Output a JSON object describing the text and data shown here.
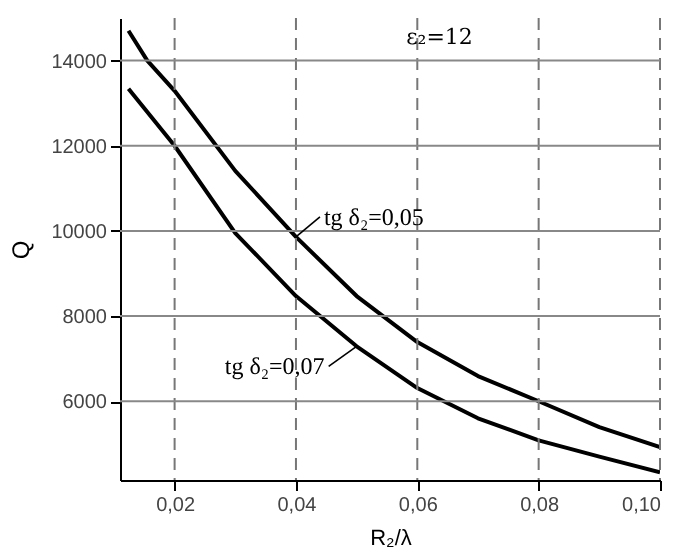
{
  "chart_data": {
    "type": "line",
    "xlabel": "R₂/λ",
    "ylabel": "Q",
    "annotations": [
      "ε₂=12"
    ],
    "series": [
      {
        "name": "tg δ₂=0,05",
        "color": "#000000",
        "x": [
          0.0124,
          0.0155,
          0.02,
          0.03,
          0.04,
          0.05,
          0.06,
          0.07,
          0.08,
          0.09,
          0.1
        ],
        "values": [
          14700,
          14000,
          13290,
          11410,
          9860,
          8470,
          7390,
          6590,
          6000,
          5390,
          4920
        ]
      },
      {
        "name": "tg δ₂=0,07",
        "color": "#000000",
        "x": [
          0.0124,
          0.02,
          0.03,
          0.04,
          0.05,
          0.06,
          0.07,
          0.08,
          0.09,
          0.1
        ],
        "values": [
          13340,
          12000,
          9950,
          8470,
          7290,
          6310,
          5600,
          5080,
          4700,
          4330
        ]
      }
    ],
    "xlim": [
      0.011,
      0.1
    ],
    "ylim": [
      4150,
      15000
    ],
    "xticks": [
      {
        "value": 0.02,
        "label": "0,02"
      },
      {
        "value": 0.04,
        "label": "0,04"
      },
      {
        "value": 0.06,
        "label": "0,06"
      },
      {
        "value": 0.08,
        "label": "0,08"
      },
      {
        "value": 0.1,
        "label": "0,10"
      }
    ],
    "yticks": [
      6000,
      8000,
      10000,
      12000,
      14000
    ],
    "grid": true,
    "marker": "none",
    "line_style": "solid"
  }
}
